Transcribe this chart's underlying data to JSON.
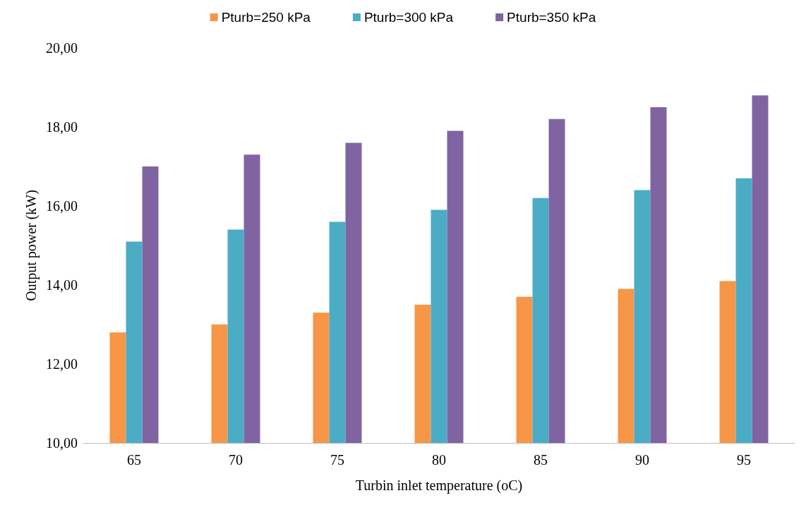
{
  "chart_data": {
    "type": "bar",
    "xlabel": "Turbin inlet temperature (oC)",
    "ylabel": "Output power (kW)",
    "categories": [
      "65",
      "70",
      "75",
      "80",
      "85",
      "90",
      "95"
    ],
    "series": [
      {
        "name": "Pturb=250 kPa",
        "color": "#f79646",
        "values": [
          12.8,
          13.0,
          13.3,
          13.5,
          13.7,
          13.9,
          14.1
        ]
      },
      {
        "name": "Pturb=300 kPa",
        "color": "#4bacc6",
        "values": [
          15.1,
          15.4,
          15.6,
          15.9,
          16.2,
          16.4,
          16.7
        ]
      },
      {
        "name": "Pturb=350 kPa",
        "color": "#8064a2",
        "values": [
          17.0,
          17.3,
          17.6,
          17.9,
          18.2,
          18.5,
          18.8
        ]
      }
    ],
    "ylim": [
      10,
      20
    ],
    "yticks": [
      {
        "value": 10,
        "label": "10,00"
      },
      {
        "value": 12,
        "label": "12,00"
      },
      {
        "value": 14,
        "label": "14,00"
      },
      {
        "value": 16,
        "label": "16,00"
      },
      {
        "value": 18,
        "label": "18,00"
      },
      {
        "value": 20,
        "label": "20,00"
      }
    ],
    "grid": false,
    "legend": "top"
  }
}
